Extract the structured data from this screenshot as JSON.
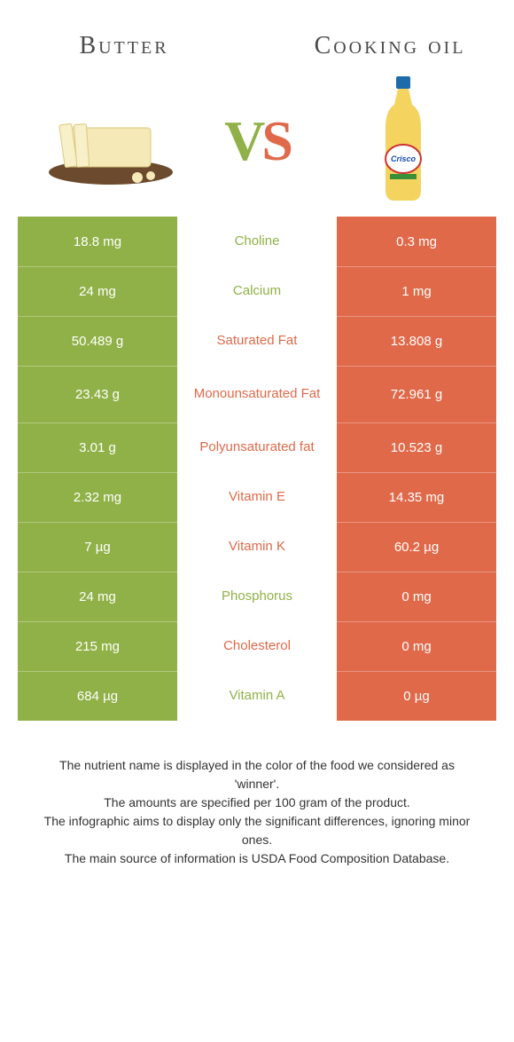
{
  "header": {
    "left_title": "Butter",
    "right_title": "Cooking oil",
    "vs_v": "V",
    "vs_s": "S"
  },
  "colors": {
    "left": "#90b147",
    "right": "#e0694a",
    "bg": "#ffffff",
    "text": "#333333"
  },
  "rows": [
    {
      "left": "18.8 mg",
      "label": "Choline",
      "right": "0.3 mg",
      "winner": "left"
    },
    {
      "left": "24 mg",
      "label": "Calcium",
      "right": "1 mg",
      "winner": "left"
    },
    {
      "left": "50.489 g",
      "label": "Saturated Fat",
      "right": "13.808 g",
      "winner": "right"
    },
    {
      "left": "23.43 g",
      "label": "Monounsaturated Fat",
      "right": "72.961 g",
      "winner": "right"
    },
    {
      "left": "3.01 g",
      "label": "Polyunsaturated fat",
      "right": "10.523 g",
      "winner": "right"
    },
    {
      "left": "2.32 mg",
      "label": "Vitamin E",
      "right": "14.35 mg",
      "winner": "right"
    },
    {
      "left": "7 µg",
      "label": "Vitamin K",
      "right": "60.2 µg",
      "winner": "right"
    },
    {
      "left": "24 mg",
      "label": "Phosphorus",
      "right": "0 mg",
      "winner": "left"
    },
    {
      "left": "215 mg",
      "label": "Cholesterol",
      "right": "0 mg",
      "winner": "right"
    },
    {
      "left": "684 µg",
      "label": "Vitamin A",
      "right": "0 µg",
      "winner": "left"
    }
  ],
  "footer": {
    "line1": "The nutrient name is displayed in the color of the food we considered as 'winner'.",
    "line2": "The amounts are specified per 100 gram of the product.",
    "line3": "The infographic aims to display only the significant differences, ignoring minor ones.",
    "line4": "The main source of information is USDA Food Composition Database."
  },
  "typography": {
    "title_fontsize": 28,
    "cell_fontsize": 15,
    "vs_fontsize": 64,
    "footer_fontsize": 14
  }
}
